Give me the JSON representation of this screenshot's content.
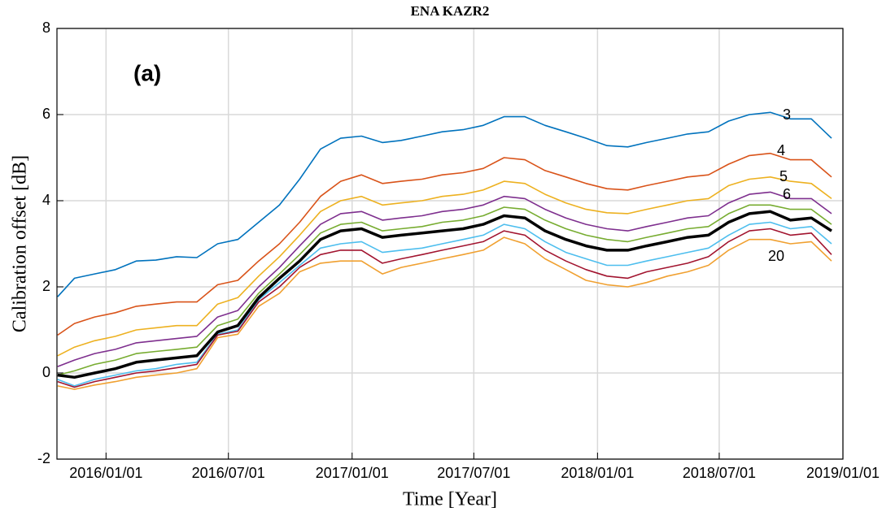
{
  "chart_data": {
    "type": "line",
    "title": "ENA KAZR2",
    "xlabel": "Time [Year]",
    "ylabel": "Calibration offset [dB]",
    "x": [
      "2015-10-21",
      "2015-11-15",
      "2015-12-15",
      "2016-01-15",
      "2016-02-15",
      "2016-03-15",
      "2016-04-15",
      "2016-05-15",
      "2016-06-15",
      "2016-07-15",
      "2016-08-15",
      "2016-09-15",
      "2016-10-15",
      "2016-11-15",
      "2016-12-15",
      "2017-01-15",
      "2017-02-15",
      "2017-03-15",
      "2017-04-15",
      "2017-05-15",
      "2017-06-15",
      "2017-07-15",
      "2017-08-15",
      "2017-09-15",
      "2017-10-15",
      "2017-11-15",
      "2017-12-15",
      "2018-01-15",
      "2018-02-15",
      "2018-03-15",
      "2018-04-15",
      "2018-05-15",
      "2018-06-15",
      "2018-07-15",
      "2018-08-15",
      "2018-09-15",
      "2018-10-15",
      "2018-11-15",
      "2018-12-15"
    ],
    "series": [
      {
        "color": "#0072bd",
        "values": [
          1.77,
          2.2,
          2.3,
          2.4,
          2.6,
          2.62,
          2.7,
          2.68,
          3.0,
          3.1,
          3.5,
          3.9,
          4.5,
          5.2,
          5.45,
          5.5,
          5.35,
          5.4,
          5.5,
          5.6,
          5.65,
          5.75,
          5.95,
          5.95,
          5.75,
          5.6,
          5.45,
          5.28,
          5.25,
          5.35,
          5.45,
          5.55,
          5.6,
          5.85,
          6.0,
          6.05,
          5.9,
          5.9,
          5.45
        ]
      },
      {
        "color": "#d95319",
        "values": [
          0.88,
          1.15,
          1.3,
          1.4,
          1.55,
          1.6,
          1.65,
          1.65,
          2.05,
          2.15,
          2.6,
          3.0,
          3.5,
          4.1,
          4.45,
          4.6,
          4.4,
          4.45,
          4.5,
          4.6,
          4.65,
          4.75,
          5.0,
          4.95,
          4.7,
          4.55,
          4.4,
          4.28,
          4.25,
          4.35,
          4.45,
          4.55,
          4.6,
          4.85,
          5.05,
          5.1,
          4.95,
          4.95,
          4.55
        ]
      },
      {
        "color": "#edb120",
        "values": [
          0.4,
          0.6,
          0.75,
          0.85,
          1.0,
          1.05,
          1.1,
          1.1,
          1.6,
          1.75,
          2.25,
          2.7,
          3.2,
          3.75,
          4.0,
          4.1,
          3.9,
          3.95,
          4.0,
          4.1,
          4.15,
          4.25,
          4.45,
          4.4,
          4.15,
          3.95,
          3.8,
          3.72,
          3.7,
          3.8,
          3.9,
          4.0,
          4.05,
          4.35,
          4.5,
          4.55,
          4.45,
          4.4,
          4.05
        ]
      },
      {
        "color": "#7e2f8e",
        "values": [
          0.15,
          0.3,
          0.45,
          0.55,
          0.7,
          0.75,
          0.8,
          0.85,
          1.3,
          1.45,
          2.0,
          2.45,
          2.95,
          3.45,
          3.7,
          3.75,
          3.55,
          3.6,
          3.65,
          3.75,
          3.8,
          3.9,
          4.1,
          4.05,
          3.8,
          3.6,
          3.45,
          3.35,
          3.3,
          3.4,
          3.5,
          3.6,
          3.65,
          3.95,
          4.15,
          4.2,
          4.05,
          4.05,
          3.7
        ]
      },
      {
        "color": "#77ac30",
        "values": [
          -0.05,
          0.05,
          0.2,
          0.3,
          0.45,
          0.5,
          0.55,
          0.6,
          1.1,
          1.25,
          1.85,
          2.3,
          2.75,
          3.25,
          3.45,
          3.5,
          3.3,
          3.35,
          3.4,
          3.5,
          3.55,
          3.65,
          3.85,
          3.8,
          3.55,
          3.35,
          3.2,
          3.1,
          3.05,
          3.15,
          3.25,
          3.35,
          3.4,
          3.7,
          3.9,
          3.9,
          3.8,
          3.8,
          3.45
        ]
      },
      {
        "color": "#4dbeee",
        "values": [
          -0.15,
          -0.3,
          -0.15,
          -0.05,
          0.05,
          0.1,
          0.2,
          0.25,
          0.9,
          1.0,
          1.7,
          2.1,
          2.5,
          2.9,
          3.0,
          3.05,
          2.8,
          2.85,
          2.9,
          3.0,
          3.1,
          3.2,
          3.45,
          3.35,
          3.05,
          2.8,
          2.65,
          2.5,
          2.5,
          2.6,
          2.7,
          2.8,
          2.9,
          3.2,
          3.45,
          3.5,
          3.35,
          3.4,
          3.0
        ]
      },
      {
        "color": "#a2142f",
        "values": [
          -0.2,
          -0.33,
          -0.2,
          -0.1,
          0.0,
          0.05,
          0.12,
          0.2,
          0.88,
          0.97,
          1.65,
          2.0,
          2.45,
          2.75,
          2.85,
          2.85,
          2.55,
          2.65,
          2.75,
          2.85,
          2.95,
          3.05,
          3.3,
          3.2,
          2.85,
          2.6,
          2.4,
          2.25,
          2.2,
          2.35,
          2.45,
          2.55,
          2.7,
          3.05,
          3.3,
          3.35,
          3.2,
          3.25,
          2.75
        ]
      },
      {
        "color": "#f0a030",
        "values": [
          -0.3,
          -0.38,
          -0.28,
          -0.2,
          -0.1,
          -0.05,
          0.0,
          0.1,
          0.82,
          0.9,
          1.55,
          1.85,
          2.35,
          2.55,
          2.6,
          2.6,
          2.3,
          2.45,
          2.55,
          2.65,
          2.75,
          2.85,
          3.15,
          3.0,
          2.65,
          2.4,
          2.15,
          2.05,
          2.0,
          2.1,
          2.25,
          2.35,
          2.5,
          2.85,
          3.1,
          3.1,
          3.0,
          3.05,
          2.6
        ]
      },
      {
        "color": "#000000",
        "width": 3.5,
        "values": [
          -0.05,
          -0.1,
          0.0,
          0.1,
          0.25,
          0.3,
          0.35,
          0.4,
          0.95,
          1.1,
          1.75,
          2.2,
          2.6,
          3.1,
          3.3,
          3.35,
          3.15,
          3.2,
          3.25,
          3.3,
          3.35,
          3.45,
          3.65,
          3.6,
          3.3,
          3.1,
          2.95,
          2.85,
          2.85,
          2.95,
          3.05,
          3.15,
          3.2,
          3.5,
          3.7,
          3.75,
          3.55,
          3.6,
          3.3
        ]
      }
    ],
    "annotations": [
      "(a)",
      "3",
      "4",
      "5",
      "6",
      "20"
    ],
    "xlim": [
      "2015-10-20",
      "2019-01-01"
    ],
    "xticks": [
      "2016/01/01",
      "2016/07/01",
      "2017/01/01",
      "2017/07/01",
      "2018/01/01",
      "2018/07/01",
      "2019/01/01"
    ],
    "ylim": [
      -2,
      8
    ],
    "yticks": [
      -2,
      0,
      2,
      4,
      6,
      8
    ],
    "grid": true
  }
}
